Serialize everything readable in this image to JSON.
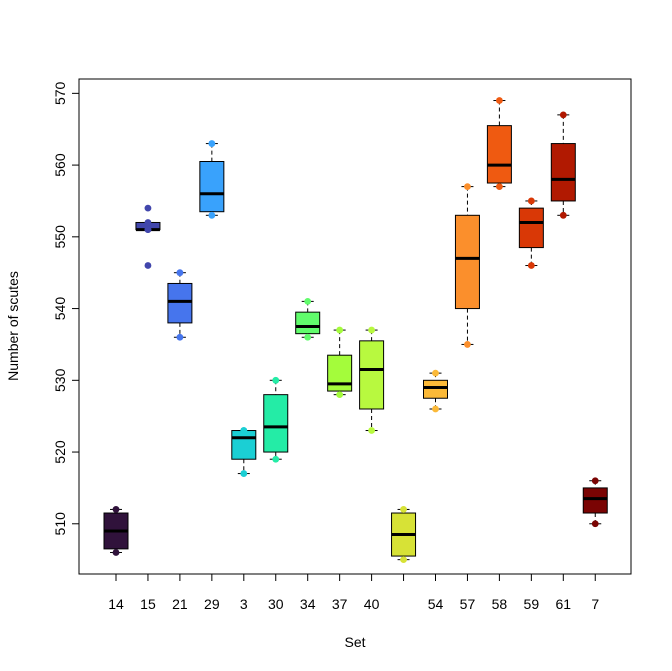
{
  "chart_data": {
    "type": "boxplot",
    "title": "",
    "xlabel": "Set",
    "ylabel": "Number of scutes",
    "ylim": [
      503,
      572
    ],
    "y_ticks": [
      510,
      520,
      530,
      540,
      550,
      560,
      570
    ],
    "grid": false,
    "legend": "none",
    "categories": [
      "14",
      "15",
      "21",
      "29",
      "3",
      "30",
      "34",
      "37",
      "40",
      "",
      "54",
      "57",
      "58",
      "59",
      "61",
      "7"
    ],
    "boxes": [
      {
        "category": "14",
        "color": "#30123b",
        "min": 506,
        "q1": 506.5,
        "median": 509,
        "q3": 511.5,
        "max": 512,
        "points": [
          506,
          512
        ]
      },
      {
        "category": "15",
        "color": "#4146ac",
        "min": 551,
        "q1": 551,
        "median": 551,
        "q3": 552,
        "max": 552,
        "outliers": [
          546,
          554
        ],
        "points": [
          546,
          551,
          551,
          552,
          554
        ]
      },
      {
        "category": "21",
        "color": "#4675ed",
        "min": 536,
        "q1": 538,
        "median": 541,
        "q3": 543.5,
        "max": 545,
        "points": [
          536,
          545
        ]
      },
      {
        "category": "29",
        "color": "#39a2fc",
        "min": 553,
        "q1": 553.5,
        "median": 556,
        "q3": 560.5,
        "max": 563,
        "points": [
          553,
          563
        ]
      },
      {
        "category": "3",
        "color": "#1bcfd4",
        "min": 517,
        "q1": 519,
        "median": 522,
        "q3": 523,
        "max": 523,
        "points": [
          517,
          523,
          523
        ]
      },
      {
        "category": "30",
        "color": "#24eca6",
        "min": 519,
        "q1": 520,
        "median": 523.5,
        "q3": 528,
        "max": 530,
        "points": [
          519,
          530
        ]
      },
      {
        "category": "34",
        "color": "#61fc6c",
        "min": 536,
        "q1": 536.5,
        "median": 537.5,
        "q3": 539.5,
        "max": 541,
        "points": [
          536,
          541
        ]
      },
      {
        "category": "37",
        "color": "#a4fc3b",
        "min": 528,
        "q1": 528.5,
        "median": 529.5,
        "q3": 533.5,
        "max": 537,
        "points": [
          528,
          537
        ]
      },
      {
        "category": "40",
        "color": "#b8f93f",
        "min": 523,
        "q1": 526,
        "median": 531.5,
        "q3": 535.5,
        "max": 537,
        "points": [
          523,
          537
        ]
      },
      {
        "category": "",
        "color": "#d7e236",
        "min": 505,
        "q1": 505.5,
        "median": 508.5,
        "q3": 511.5,
        "max": 512,
        "points": [
          505,
          512
        ]
      },
      {
        "category": "54",
        "color": "#fbb938",
        "min": 526,
        "q1": 527.5,
        "median": 529,
        "q3": 530,
        "max": 531,
        "points": [
          526,
          531
        ]
      },
      {
        "category": "57",
        "color": "#fb8f2c",
        "min": 535,
        "q1": 540,
        "median": 547,
        "q3": 553,
        "max": 557,
        "points": [
          535,
          557
        ]
      },
      {
        "category": "58",
        "color": "#ef5a11",
        "min": 557,
        "q1": 557.5,
        "median": 560,
        "q3": 565.5,
        "max": 569,
        "points": [
          557,
          569
        ]
      },
      {
        "category": "59",
        "color": "#d93806",
        "min": 546,
        "q1": 548.5,
        "median": 552,
        "q3": 554,
        "max": 555,
        "points": [
          546,
          555
        ]
      },
      {
        "category": "61",
        "color": "#b11901",
        "min": 553,
        "q1": 555,
        "median": 558,
        "q3": 563,
        "max": 567,
        "points": [
          553,
          567
        ]
      },
      {
        "category": "7",
        "color": "#7a0403",
        "min": 510,
        "q1": 511.5,
        "median": 513.5,
        "q3": 515,
        "max": 516,
        "points": [
          510,
          516
        ]
      }
    ]
  }
}
